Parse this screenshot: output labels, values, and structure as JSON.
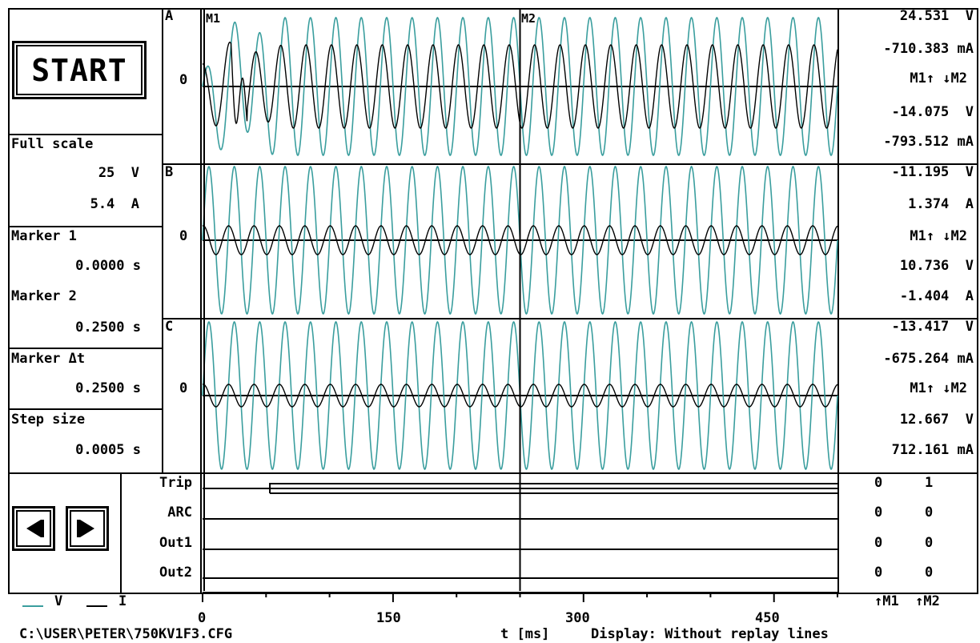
{
  "start_label": "START",
  "left_panel": {
    "full_scale_label": "Full scale",
    "voltage_scale": "25  V",
    "current_scale": "5.4  A",
    "marker1_label": "Marker 1",
    "marker1_value": "0.0000 s",
    "marker2_label": "Marker 2",
    "marker2_value": "0.2500 s",
    "marker_dt_label": "Marker Δt",
    "marker_dt_value": "0.2500 s",
    "step_label": "Step size",
    "step_value": "0.0005 s"
  },
  "channels": [
    {
      "name": "A",
      "zero": "0",
      "v1": "24.531  V",
      "i1": "-710.383 mA",
      "arrows": "M1↑ ↓M2",
      "v2": "-14.075  V",
      "i2": "-793.512 mA"
    },
    {
      "name": "B",
      "zero": "0",
      "v1": "-11.195  V",
      "i1": "1.374  A",
      "arrows": "M1↑ ↓M2",
      "v2": "10.736  V",
      "i2": "-1.404  A"
    },
    {
      "name": "C",
      "zero": "0",
      "v1": "-13.417  V",
      "i1": "-675.264 mA",
      "arrows": "M1↑ ↓M2",
      "v2": "12.667  V",
      "i2": "712.161 mA"
    }
  ],
  "markers": {
    "m1": "M1",
    "m2": "M2"
  },
  "digital": [
    {
      "name": "Trip",
      "m1": "0",
      "m2": "1"
    },
    {
      "name": "ARC",
      "m1": "0",
      "m2": "0"
    },
    {
      "name": "Out1",
      "m1": "0",
      "m2": "0"
    },
    {
      "name": "Out2",
      "m1": "0",
      "m2": "0"
    }
  ],
  "legend": {
    "v": "V",
    "i": "I"
  },
  "marker_footer": "↑M1  ↑M2",
  "x_axis": {
    "ticks": [
      "0",
      "150",
      "300",
      "450"
    ],
    "unit": "t [ms]"
  },
  "status": {
    "file_path": "C:\\USER\\PETER\\750KV1F3.CFG",
    "display": "Display: Without replay lines"
  },
  "colors": {
    "voltage": "#3a9e9e",
    "current": "#000000"
  },
  "chart_data": {
    "type": "line",
    "x_range_ms": [
      0,
      500
    ],
    "marker_positions_ms": [
      0,
      250
    ],
    "signal_cycles": 25,
    "channels": [
      "A",
      "B",
      "C"
    ],
    "series": [
      {
        "name": "V",
        "color": "#3a9e9e"
      },
      {
        "name": "I",
        "color": "#000000"
      }
    ]
  }
}
